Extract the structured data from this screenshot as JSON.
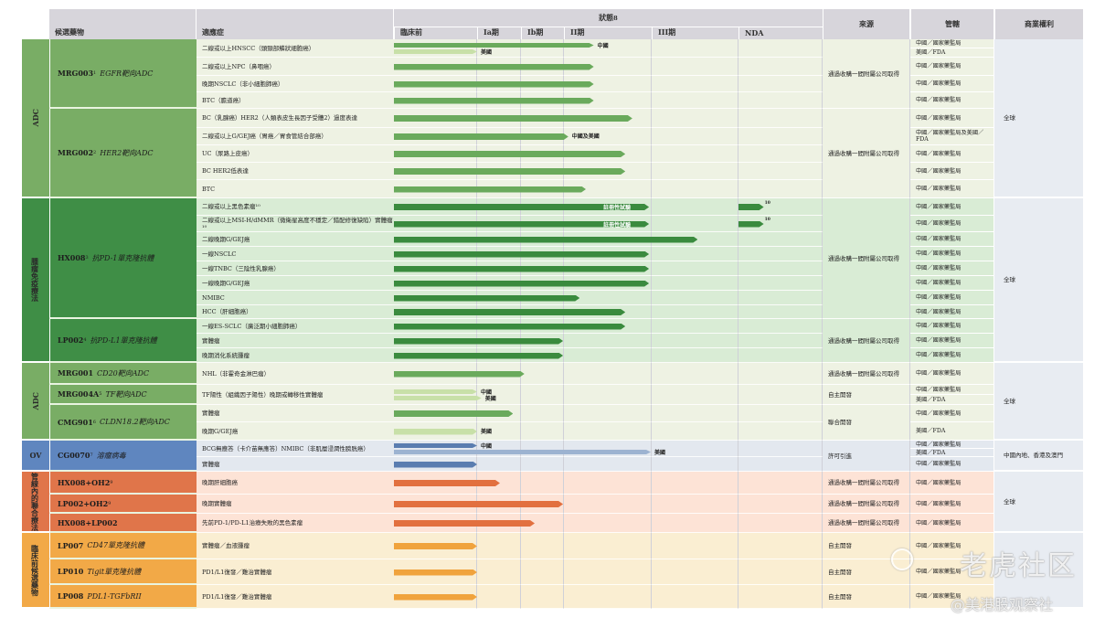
{
  "header": {
    "drug": "候選藥物",
    "indication": "適應症",
    "status": "狀態",
    "status_sup": "8",
    "phases": [
      "臨床前",
      "Ia期",
      "Ib期",
      "II期",
      "III期",
      "NDA"
    ],
    "source": "來源",
    "jurisdiction": "管轄",
    "rights": "商業權利"
  },
  "groups": [
    {
      "category": "ADC",
      "colors": {
        "cat": "#79ad65",
        "bg": "#eef2e3",
        "bar": "#6aaa5c",
        "light": "#c8e0a8"
      },
      "rights": "全球",
      "sources": [
        {
          "label": "通過收購一間附屬公司取得",
          "rows": 4
        },
        {
          "label": "通過收購一間附屬公司取得",
          "rows": 5
        }
      ],
      "drugs": [
        {
          "name": "MRG003",
          "sup": "1",
          "target": "EGFR靶向ADC",
          "rows": [
            {
              "indication": "二線或以上HNSCC（頭頸部鱗狀細胞癌）",
              "bars": [
                {
                  "to": 3.34,
                  "label": "中國"
                },
                {
                  "to": 1.0,
                  "light": true,
                  "label": "美國"
                }
              ],
              "jur": [
                "中國／國家藥監局",
                "美國／FDA"
              ]
            },
            {
              "indication": "二線或以上NPC（鼻咽癌）",
              "bars": [
                {
                  "to": 3.34
                }
              ],
              "jur": [
                "中國／國家藥監局"
              ]
            },
            {
              "indication": "晚期NSCLC（非小細胞肺癌）",
              "bars": [
                {
                  "to": 3.34
                }
              ],
              "jur": [
                "中國／國家藥監局"
              ]
            },
            {
              "indication": "BTC（膽道癌）",
              "bars": [
                {
                  "to": 3.34
                }
              ],
              "jur": [
                "中國／國家藥監局"
              ]
            }
          ]
        },
        {
          "name": "MRG002",
          "sup": "2",
          "target": "HER2靶向ADC",
          "rows": [
            {
              "indication": "BC（乳腺癌）HER2（人類表皮生長因子受體2）過度表達",
              "bars": [
                {
                  "to": 3.78
                }
              ],
              "jur": [
                "中國／國家藥監局"
              ]
            },
            {
              "indication": "二線或以上G/GEJ癌（胃癌／胃食管結合部癌）",
              "bars": [
                {
                  "to": 3.05,
                  "label": "中國及美國"
                }
              ],
              "jur": [
                "中國／國家藥監局及美國／FDA"
              ]
            },
            {
              "indication": "UC（尿路上皮癌）",
              "bars": [
                {
                  "to": 3.7
                }
              ],
              "jur": [
                "中國／國家藥監局"
              ]
            },
            {
              "indication": "BC HER2低表達",
              "bars": [
                {
                  "to": 3.7
                }
              ],
              "jur": [
                "中國／國家藥監局"
              ]
            },
            {
              "indication": "BTC",
              "bars": [
                {
                  "to": 3.25
                }
              ],
              "jur": [
                "中國／國家藥監局"
              ]
            }
          ]
        }
      ]
    },
    {
      "category": "腫瘤免疫療法",
      "colors": {
        "cat": "#3f8e46",
        "bg": "#d9ecd5",
        "bar": "#3a8b3e",
        "light": "#9fcf96"
      },
      "rights": "全球",
      "sources": [
        {
          "label": "通過收購一間附屬公司取得",
          "rows": 8
        },
        {
          "label": "通過收購一間附屬公司取得",
          "rows": 3
        }
      ],
      "drugs": [
        {
          "name": "HX008",
          "sup": "3",
          "target": "抗PD-1單克隆抗體",
          "rows": [
            {
              "indication": "二線或以上黑色素瘤¹⁰",
              "bars": [
                {
                  "to": 3.97,
                  "tag": "註冊性試驗"
                },
                {
                  "from": 5.0,
                  "to": 5.3,
                  "sup": "10"
                }
              ],
              "jur": [
                "中國／國家藥監局"
              ]
            },
            {
              "indication": "二線或以上MSI-H/dMMR（微衛星高度不穩定／錯配修復缺陷）實體瘤¹⁰",
              "bars": [
                {
                  "to": 3.97,
                  "tag": "註冊性試驗"
                },
                {
                  "from": 5.0,
                  "to": 5.3,
                  "sup": "10"
                }
              ],
              "jur": [
                "中國／國家藥監局"
              ]
            },
            {
              "indication": "二線晚期G/GEJ癌",
              "bars": [
                {
                  "to": 4.53
                }
              ],
              "jur": [
                "中國／國家藥監局"
              ]
            },
            {
              "indication": "一線NSCLC",
              "bars": [
                {
                  "to": 3.97
                }
              ],
              "jur": [
                "中國／國家藥監局"
              ]
            },
            {
              "indication": "一線TNBC（三陰性乳腺癌）",
              "bars": [
                {
                  "to": 3.97
                }
              ],
              "jur": [
                "中國／國家藥監局"
              ]
            },
            {
              "indication": "一線晚期G/GEJ癌",
              "bars": [
                {
                  "to": 3.97
                }
              ],
              "jur": [
                "中國／國家藥監局"
              ]
            },
            {
              "indication": "NMIBC",
              "bars": [
                {
                  "to": 3.18
                }
              ],
              "jur": [
                "中國／國家藥監局"
              ]
            },
            {
              "indication": "HCC（肝細胞癌）",
              "bars": [
                {
                  "to": 3.7
                }
              ],
              "jur": [
                "中國／國家藥監局"
              ]
            }
          ]
        },
        {
          "name": "LP002",
          "sup": "4",
          "target": "抗PD-L1單克隆抗體",
          "rows": [
            {
              "indication": "一線ES-SCLC（廣泛期小細胞肺癌）",
              "bars": [
                {
                  "to": 3.7
                }
              ],
              "jur": [
                "中國／國家藥監局"
              ]
            },
            {
              "indication": "實體瘤",
              "bars": [
                {
                  "to": 2.98
                }
              ],
              "jur": [
                "中國／國家藥監局"
              ]
            },
            {
              "indication": "晚期消化系統腫瘤",
              "bars": [
                {
                  "to": 2.98
                }
              ],
              "jur": [
                "中國／國家藥監局"
              ]
            }
          ]
        }
      ]
    },
    {
      "category": "ADC",
      "colors": {
        "cat": "#79ad65",
        "bg": "#eef2e3",
        "bar": "#6aaa5c",
        "light": "#c8e0a8"
      },
      "rights": "全球",
      "sources": [
        {
          "label": "通過收購一間附屬公司取得",
          "rows": 1
        },
        {
          "label": "自主開發",
          "rows": 1
        },
        {
          "label": "聯合開發",
          "rows": 2
        }
      ],
      "drugs": [
        {
          "name": "MRG001",
          "sup": "",
          "target": "CD20靶向ADC",
          "rows": [
            {
              "indication": "NHL（非霍奇金淋巴瘤）",
              "bars": [
                {
                  "to": 2.08
                }
              ],
              "jur": [
                "中國／國家藥監局"
              ]
            }
          ]
        },
        {
          "name": "MRG004A",
          "sup": "5",
          "target": "TF靶向ADC",
          "rows": [
            {
              "indication": "TF陽性（組織因子陽性）晚期或轉移性實體瘤",
              "bars": [
                {
                  "to": 1.0,
                  "light": true,
                  "label": "中國"
                },
                {
                  "to": 1.1,
                  "light": true,
                  "label": "美國"
                }
              ],
              "jur": [
                "中國／國家藥監局",
                "美國／FDA"
              ]
            }
          ]
        },
        {
          "name": "CMG901",
          "sup": "6",
          "target": "CLDN18.2靶向ADC",
          "rows": [
            {
              "indication": "實體瘤",
              "bars": [
                {
                  "to": 1.82
                }
              ],
              "jur": [
                "中國／國家藥監局"
              ]
            },
            {
              "indication": "晚期G/GEJ癌",
              "bars": [
                {
                  "to": 1.0,
                  "light": true,
                  "label": "美國"
                }
              ],
              "jur": [
                "美國／FDA"
              ]
            }
          ]
        }
      ]
    },
    {
      "category": "OV",
      "colors": {
        "cat": "#5f86bf",
        "bg": "#e3e8ef",
        "bar": "#5a7db0",
        "light": "#9db3d1"
      },
      "rights": "中國內地、香港及澳門",
      "sources": [
        {
          "label": "許可引進",
          "rows": 2
        }
      ],
      "drugs": [
        {
          "name": "CG0070",
          "sup": "7",
          "target": "溶瘤病毒",
          "rows": [
            {
              "indication": "BCG無應答（卡介苗無應答）NMIBC（非肌層浸潤性膀胱癌）",
              "bars": [
                {
                  "to": 1.0,
                  "label": "中國"
                },
                {
                  "to": 3.99,
                  "light": true,
                  "label": "美國"
                }
              ],
              "jur": [
                "中國／國家藥監局",
                "美國／FDA"
              ]
            },
            {
              "indication": "實體瘤",
              "bars": [
                {
                  "to": 1.0
                }
              ],
              "jur": [
                "中國／國家藥監局"
              ]
            }
          ]
        }
      ]
    },
    {
      "category": "管線內的聯合療法",
      "colors": {
        "cat": "#e0754a",
        "bg": "#fde3d6",
        "bar": "#e2703f",
        "light": "#f2b093"
      },
      "rights": "全球",
      "sources": [
        {
          "label": "通過收購一間附屬公司取得",
          "rows": 1
        },
        {
          "label": "通過收購一間附屬公司取得",
          "rows": 1
        },
        {
          "label": "通過收購一間附屬公司取得",
          "rows": 1
        }
      ],
      "drugs": [
        {
          "name": "HX008+OH2",
          "sup": "9",
          "target": "",
          "rows": [
            {
              "indication": "晚期肝細胞癌",
              "bars": [
                {
                  "to": 1.52
                }
              ],
              "jur": [
                "中國／國家藥監局"
              ]
            }
          ]
        },
        {
          "name": "LP002+OH2",
          "sup": "9",
          "target": "",
          "rows": [
            {
              "indication": "晚期實體瘤",
              "bars": [
                {
                  "to": 2.98
                }
              ],
              "jur": [
                "中國／國家藥監局"
              ]
            }
          ]
        },
        {
          "name": "HX008+LP002",
          "sup": "",
          "target": "",
          "rows": [
            {
              "indication": "先前PD-1/PD-L1治療失敗的黑色素瘤",
              "bars": [
                {
                  "to": 2.32
                }
              ],
              "jur": [
                "中國／國家藥監局"
              ]
            }
          ]
        }
      ]
    },
    {
      "category": "臨床前候選藥物",
      "colors": {
        "cat": "#f2a947",
        "bg": "#faeed2",
        "bar": "#f0a33d",
        "light": "#f6cd8e"
      },
      "rights": "",
      "sources": [
        {
          "label": "自主開發",
          "rows": 1
        },
        {
          "label": "自主開發",
          "rows": 1
        },
        {
          "label": "自主開發",
          "rows": 1
        }
      ],
      "drugs": [
        {
          "name": "LP007",
          "sup": "",
          "target": "CD47單克隆抗體",
          "rows": [
            {
              "indication": "實體瘤／血液腫瘤",
              "bars": [
                {
                  "to": 1.0
                }
              ],
              "jur": [
                "中國／國家藥監局"
              ]
            }
          ]
        },
        {
          "name": "LP010",
          "sup": "",
          "target": "Tigit單克隆抗體",
          "rows": [
            {
              "indication": "PD1/L1復發／難治實體瘤",
              "bars": [
                {
                  "to": 1.0
                }
              ],
              "jur": [
                "中國／國家藥監局"
              ]
            }
          ]
        },
        {
          "name": "LP008",
          "sup": "",
          "target": "PDL1-TGFbRII",
          "rows": [
            {
              "indication": "PD1/L1復發／難治實體瘤",
              "bars": [
                {
                  "to": 1.0
                }
              ],
              "jur": [
                "中國／國家藥監局"
              ]
            }
          ]
        }
      ]
    }
  ],
  "watermark": {
    "brand": "老虎社区",
    "handle": "@美港股观察社"
  }
}
